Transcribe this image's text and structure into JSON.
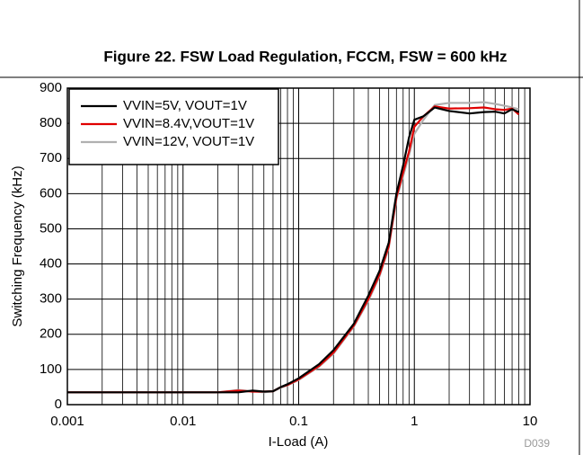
{
  "chart_data": {
    "type": "line",
    "title": "Figure 22. FSW Load Regulation, FCCM, FSW = 600 kHz",
    "x_label": "I-Load (A)",
    "y_label": "Switching Frequency (kHz)",
    "footnote": "D039",
    "xscale": "log",
    "xlim": [
      0.001,
      10
    ],
    "xticks": [
      0.001,
      0.01,
      0.1,
      1,
      10
    ],
    "xminorticks": [
      0.002,
      0.003,
      0.004,
      0.005,
      0.006,
      0.007,
      0.008,
      0.009,
      0.02,
      0.03,
      0.04,
      0.05,
      0.06,
      0.07,
      0.08,
      0.09,
      0.2,
      0.3,
      0.4,
      0.5,
      0.6,
      0.7,
      0.8,
      0.9,
      2,
      3,
      4,
      5,
      6,
      7,
      8,
      9
    ],
    "ylim": [
      0,
      900
    ],
    "yticks": [
      0,
      100,
      200,
      300,
      400,
      500,
      600,
      700,
      800,
      900
    ],
    "grid": true,
    "legend": "upper left",
    "x": [
      0.001,
      0.002,
      0.005,
      0.01,
      0.02,
      0.03,
      0.04,
      0.05,
      0.06,
      0.07,
      0.08,
      0.1,
      0.15,
      0.2,
      0.3,
      0.4,
      0.5,
      0.6,
      0.7,
      0.8,
      0.9,
      1,
      1.2,
      1.5,
      2,
      3,
      4,
      5,
      6,
      7,
      8
    ],
    "series": [
      {
        "name": "VVIN=5V,  VOUT=1V",
        "color": "#000000",
        "values": [
          35,
          35,
          35,
          35,
          35,
          35,
          40,
          37,
          38,
          50,
          58,
          75,
          115,
          155,
          230,
          310,
          380,
          460,
          600,
          680,
          760,
          810,
          820,
          845,
          835,
          828,
          832,
          833,
          828,
          840,
          832
        ]
      },
      {
        "name": "VVIN=8.4V,VOUT=1V",
        "color": "#e00000",
        "values": [
          35,
          35,
          35,
          35,
          35,
          40,
          37,
          37,
          38,
          50,
          56,
          72,
          110,
          148,
          225,
          300,
          370,
          450,
          590,
          660,
          720,
          790,
          820,
          848,
          842,
          843,
          845,
          840,
          838,
          842,
          825
        ]
      },
      {
        "name": "VVIN=12V, VOUT=1V",
        "color": "#b0b0b0",
        "values": [
          35,
          35,
          35,
          35,
          35,
          42,
          38,
          35,
          38,
          48,
          55,
          70,
          108,
          145,
          222,
          295,
          365,
          445,
          585,
          650,
          710,
          770,
          810,
          852,
          858,
          858,
          860,
          855,
          850,
          845,
          840
        ]
      }
    ]
  }
}
